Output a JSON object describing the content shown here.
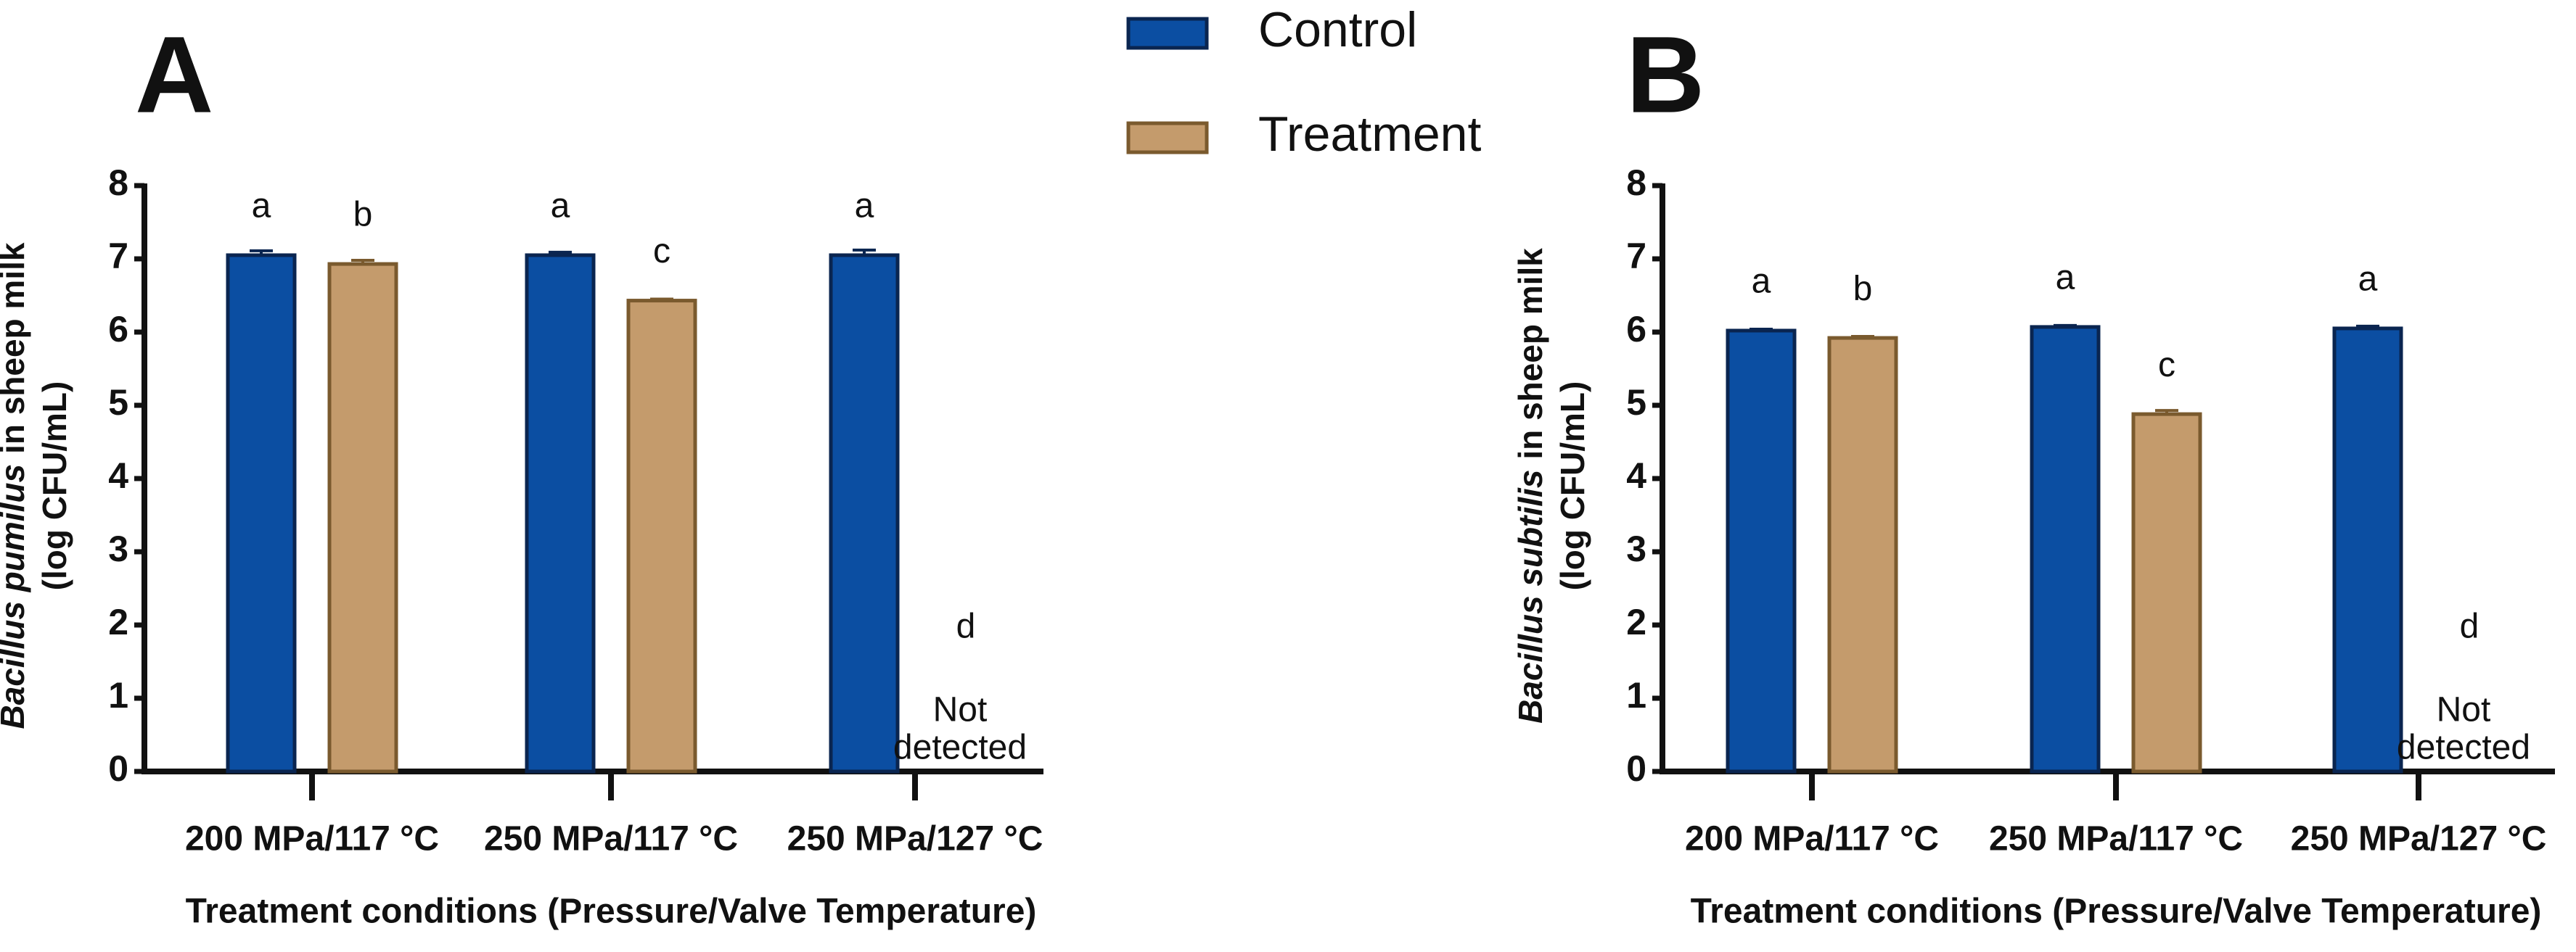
{
  "chart_data": [
    {
      "type": "bar",
      "panel": "A",
      "ylabel": {
        "species": "Bacillus pumilus",
        "rest": "in sheep milk",
        "unit": "(log CFU/mL)"
      },
      "xlabel": "Treatment conditions (Pressure/Valve Temperature)",
      "categories": [
        "200 MPa/117 °C",
        "250 MPa/117 °C",
        "250 MPa/127 °C"
      ],
      "series": [
        {
          "name": "Control",
          "color": "#0b4ea2",
          "edge": "#0a2550",
          "values": [
            7.05,
            7.05,
            7.05
          ],
          "errors": [
            0.06,
            0.04,
            0.07
          ],
          "letters": [
            "a",
            "a",
            "a"
          ]
        },
        {
          "name": "Treatment",
          "color": "#c49b6c",
          "edge": "#7a5a2e",
          "values": [
            6.93,
            6.43,
            null
          ],
          "errors": [
            0.05,
            0.02,
            null
          ],
          "letters": [
            "b",
            "c",
            "d"
          ]
        }
      ],
      "not_detected": [
        "Not",
        "detected"
      ],
      "ylim": [
        0,
        8
      ],
      "yticks": [
        0,
        1,
        2,
        3,
        4,
        5,
        6,
        7,
        8
      ],
      "legend": true
    },
    {
      "type": "bar",
      "panel": "B",
      "ylabel": {
        "species": "Bacillus subtilis",
        "rest": "in sheep milk",
        "unit": "(log CFU/mL)"
      },
      "xlabel": "Treatment conditions (Pressure/Valve Temperature)",
      "categories": [
        "200 MPa/117 °C",
        "250 MPa/117 °C",
        "250 MPa/127 °C"
      ],
      "series": [
        {
          "name": "Control",
          "color": "#0b4ea2",
          "edge": "#0a2550",
          "values": [
            6.02,
            6.07,
            6.05
          ],
          "errors": [
            0.02,
            0.02,
            0.03
          ],
          "letters": [
            "a",
            "a",
            "a"
          ]
        },
        {
          "name": "Treatment",
          "color": "#c49b6c",
          "edge": "#7a5a2e",
          "values": [
            5.92,
            4.88,
            null
          ],
          "errors": [
            0.02,
            0.05,
            null
          ],
          "letters": [
            "b",
            "c",
            "d"
          ]
        }
      ],
      "not_detected": [
        "Not",
        "detected"
      ],
      "ylim": [
        0,
        8
      ],
      "yticks": [
        0,
        1,
        2,
        3,
        4,
        5,
        6,
        7,
        8
      ],
      "legend": false
    }
  ]
}
